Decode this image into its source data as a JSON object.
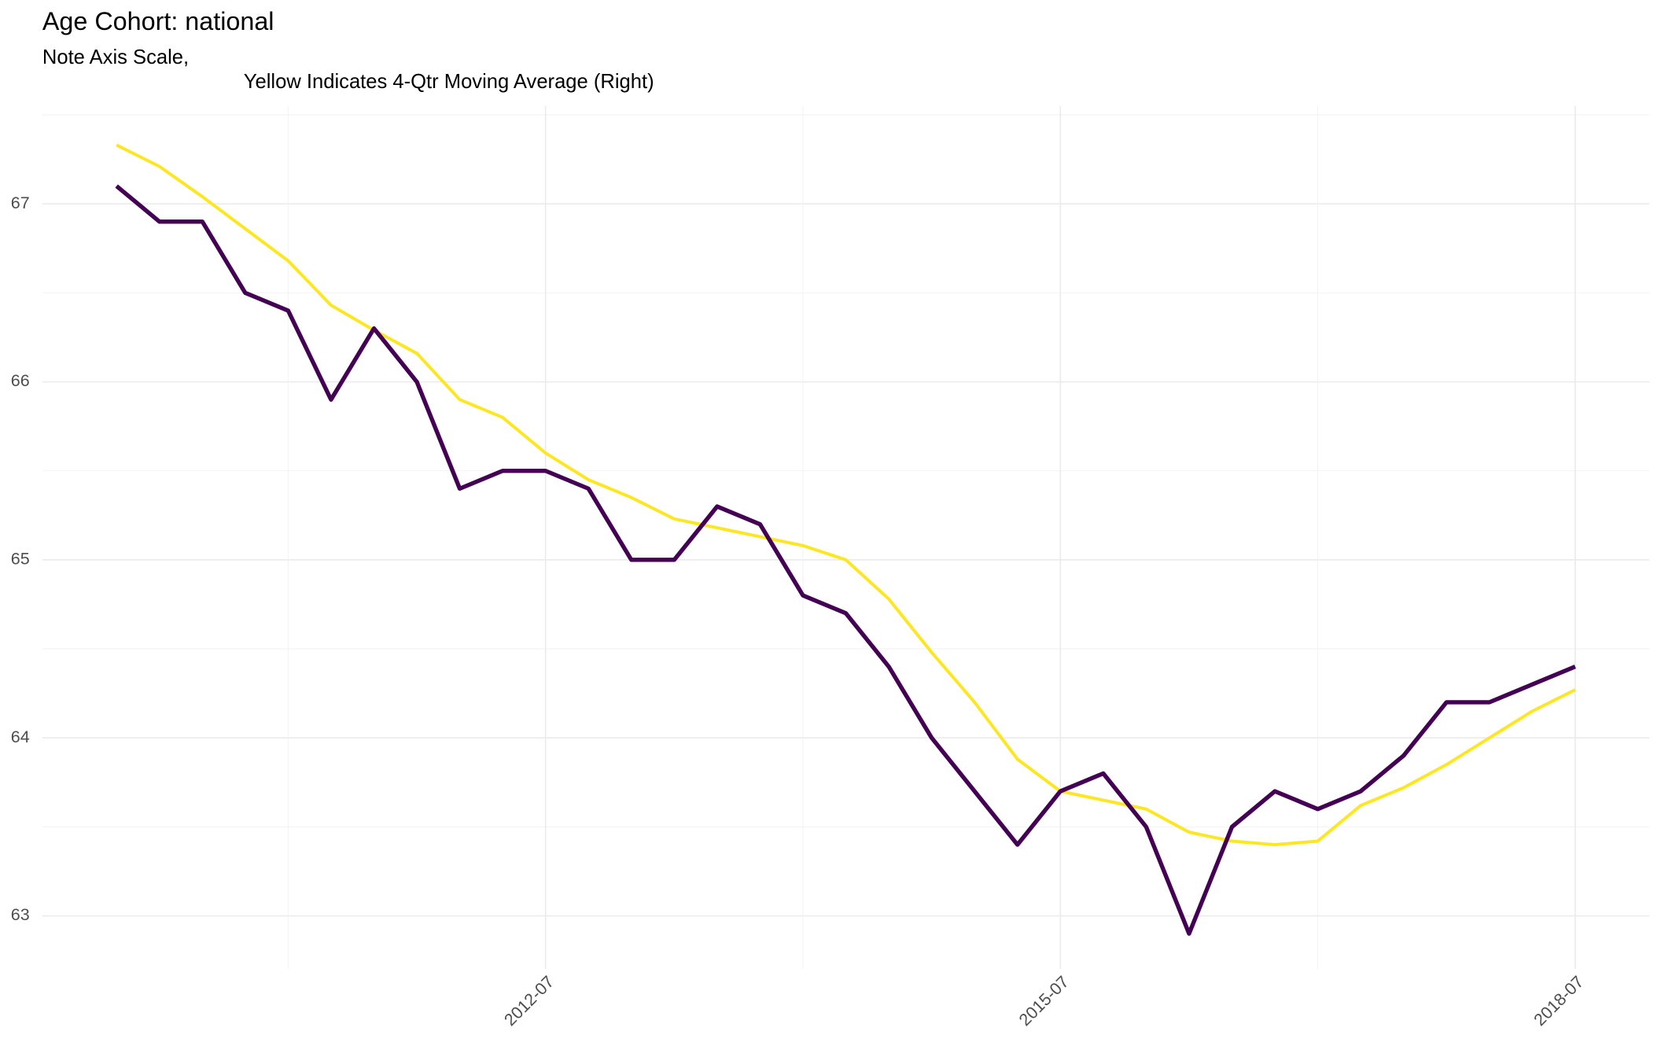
{
  "chart_data": {
    "type": "line",
    "title": "Age Cohort: national",
    "subtitle": [
      "Note Axis Scale,",
      "Yellow Indicates 4-Qtr Moving Average (Right)"
    ],
    "x": [
      "2010-01",
      "2010-04",
      "2010-07",
      "2010-10",
      "2011-01",
      "2011-04",
      "2011-07",
      "2011-10",
      "2012-01",
      "2012-04",
      "2012-07",
      "2012-10",
      "2013-01",
      "2013-04",
      "2013-07",
      "2013-10",
      "2014-01",
      "2014-04",
      "2014-07",
      "2014-10",
      "2015-01",
      "2015-04",
      "2015-07",
      "2015-10",
      "2016-01",
      "2016-04",
      "2016-07",
      "2016-10",
      "2017-01",
      "2017-04",
      "2017-07",
      "2017-10",
      "2018-01",
      "2018-04",
      "2018-07"
    ],
    "series": [
      {
        "color": "#440154",
        "values": [
          67.1,
          66.9,
          66.9,
          66.5,
          66.4,
          65.9,
          66.3,
          66.0,
          65.4,
          65.5,
          65.5,
          65.4,
          65.0,
          65.0,
          65.3,
          65.2,
          64.8,
          64.7,
          64.4,
          64.0,
          63.7,
          63.4,
          63.7,
          63.8,
          63.5,
          62.9,
          63.5,
          63.7,
          63.6,
          63.7,
          63.9,
          64.2,
          64.2,
          64.3,
          64.4
        ]
      },
      {
        "color": "#FDE725",
        "axis": "y2",
        "values": [
          67.33,
          67.21,
          67.04,
          66.86,
          66.68,
          66.43,
          66.29,
          66.16,
          65.9,
          65.8,
          65.6,
          65.45,
          65.35,
          65.23,
          65.18,
          65.13,
          65.08,
          65.0,
          64.78,
          64.48,
          64.2,
          63.88,
          63.7,
          63.65,
          63.6,
          63.47,
          63.42,
          63.4,
          63.42,
          63.62,
          63.72,
          63.85,
          64.0,
          64.15,
          64.27
        ]
      }
    ],
    "xticks": [
      "2012-07",
      "2015-07",
      "2018-07"
    ],
    "ylim": [
      62.82,
      67.55
    ],
    "yticks": [
      63,
      64,
      65,
      66,
      67
    ],
    "y2lim": [
      62.82,
      67.55
    ],
    "grid": true
  }
}
